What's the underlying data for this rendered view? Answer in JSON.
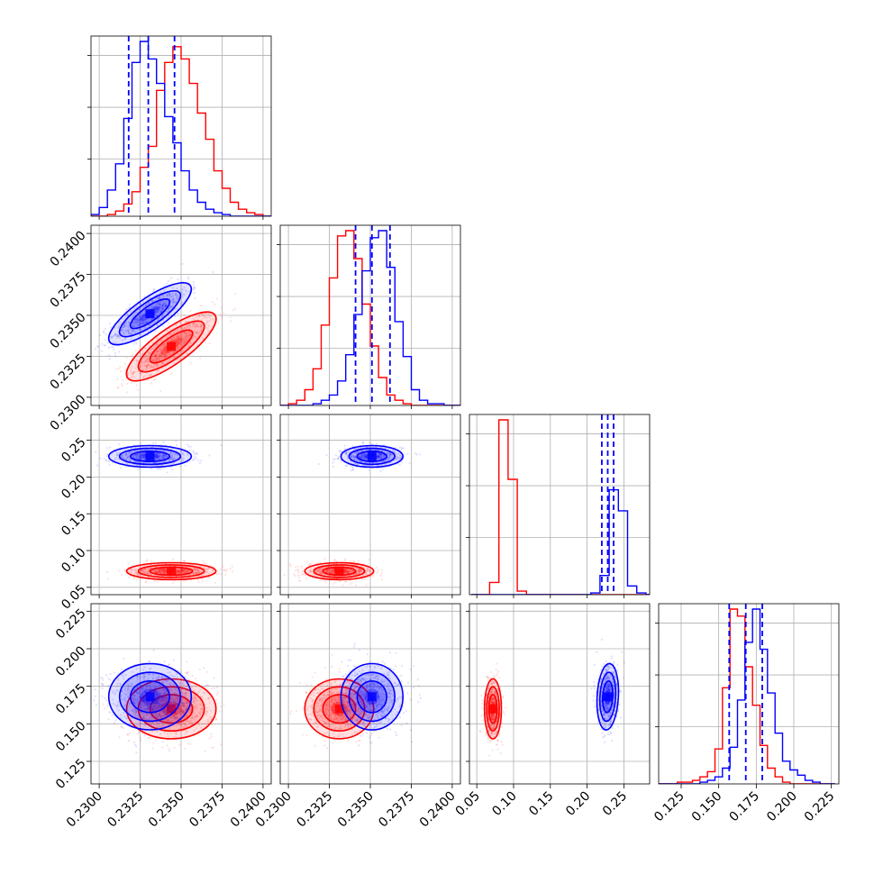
{
  "chart_data": {
    "type": "scatter",
    "variant": "corner-plot",
    "parameters": 4,
    "grid": true,
    "colors": {
      "red": "#ff0000",
      "blue": "#0000ff"
    },
    "axes": [
      {
        "range": [
          0.2295,
          0.2405
        ],
        "ticks": [
          0.23,
          0.2325,
          0.235,
          0.2375,
          0.24
        ],
        "tick_labels": [
          "0.2300",
          "0.2325",
          "0.2350",
          "0.2375",
          "0.2400"
        ]
      },
      {
        "range": [
          0.2295,
          0.2405
        ],
        "ticks": [
          0.23,
          0.2325,
          0.235,
          0.2375,
          0.24
        ],
        "tick_labels": [
          "0.2300",
          "0.2325",
          "0.2350",
          "0.2375",
          "0.2400"
        ]
      },
      {
        "range": [
          0.04,
          0.285
        ],
        "ticks_y": [
          0.05,
          0.1,
          0.15,
          0.2,
          0.25
        ],
        "tick_labels_y": [
          "0.05",
          "0.10",
          "0.15",
          "0.20",
          "0.25"
        ],
        "ticks_x": [
          0.05,
          0.1,
          0.15,
          0.2,
          0.25
        ],
        "tick_labels_x": [
          "0.05",
          "0.10",
          "0.15",
          "0.20",
          "0.25"
        ]
      },
      {
        "range": [
          0.11,
          0.23
        ],
        "ticks_y": [
          0.125,
          0.15,
          0.175,
          0.2,
          0.225
        ],
        "tick_labels_y": [
          "0.125",
          "0.150",
          "0.175",
          "0.200",
          "0.225"
        ],
        "ticks_x": [
          0.125,
          0.15,
          0.175,
          0.2,
          0.225
        ],
        "tick_labels_x": [
          "0.125",
          "0.150",
          "0.175",
          "0.200",
          "0.225"
        ]
      }
    ],
    "series": [
      {
        "color": "#ff0000",
        "mean": [
          0.2344,
          0.2331,
          0.072,
          0.16
        ],
        "sd": [
          0.0013,
          0.001,
          0.0055,
          0.0095
        ],
        "corr": [
          [
            0,
            1,
            0.8
          ]
        ]
      },
      {
        "color": "#0000ff",
        "mean": [
          0.2331,
          0.2351,
          0.228,
          0.168
        ],
        "sd": [
          0.0012,
          0.0009,
          0.007,
          0.0105
        ],
        "corr": [
          [
            0,
            1,
            0.8
          ],
          [
            2,
            3,
            0.15
          ]
        ],
        "quantiles": [
          [
            0.2318,
            0.233,
            0.2346
          ],
          [
            0.2341,
            0.2351,
            0.2362
          ],
          [
            0.22,
            0.228,
            0.236
          ],
          [
            0.157,
            0.168,
            0.179
          ]
        ]
      }
    ],
    "histograms": [
      {
        "edges_start": 0.2295,
        "bin_width": 0.0005,
        "red": [
          0,
          0,
          1,
          3,
          7,
          14,
          28,
          40,
          72,
          88,
          97,
          90,
          76,
          59,
          44,
          26,
          16,
          8,
          4,
          2,
          1,
          0
        ],
        "blue": [
          1,
          5,
          15,
          30,
          56,
          88,
          100,
          90,
          76,
          57,
          42,
          26,
          15,
          8,
          4,
          2,
          1,
          0,
          0,
          0,
          0,
          0
        ]
      },
      {
        "edges_start": 0.2295,
        "bin_width": 0.0005,
        "red": [
          0,
          1,
          3,
          9,
          21,
          46,
          73,
          97,
          100,
          84,
          58,
          34,
          16,
          6,
          3,
          1,
          0,
          0,
          0,
          0,
          0,
          0
        ],
        "blue": [
          0,
          0,
          0,
          0,
          1,
          3,
          6,
          14,
          29,
          52,
          77,
          96,
          100,
          79,
          48,
          28,
          9,
          3,
          1,
          1,
          0,
          0
        ],
        "comment_bins": "22 bins"
      },
      {
        "edges_start": 0.0425,
        "bin_width": 0.0125,
        "red": [
          0,
          0,
          7,
          100,
          66,
          2,
          0,
          0,
          0,
          0,
          0,
          0,
          0,
          0,
          0,
          0,
          0,
          0,
          0,
          0
        ],
        "blue": [
          0,
          0,
          0,
          0,
          0,
          0,
          0,
          0,
          0,
          0,
          0,
          0,
          0,
          1,
          11,
          60,
          48,
          5,
          1,
          0
        ]
      },
      {
        "edges_start": 0.1075,
        "bin_width": 0.005,
        "red": [
          0,
          0,
          0,
          1,
          1,
          2,
          4,
          7,
          20,
          55,
          100,
          96,
          67,
          45,
          22,
          9,
          4,
          1,
          0,
          0,
          0,
          0,
          0,
          0
        ],
        "blue": [
          0,
          0,
          0,
          0,
          0,
          0,
          1,
          2,
          4,
          9,
          21,
          48,
          81,
          100,
          77,
          52,
          29,
          13,
          8,
          5,
          2,
          1,
          0,
          0
        ]
      }
    ]
  }
}
